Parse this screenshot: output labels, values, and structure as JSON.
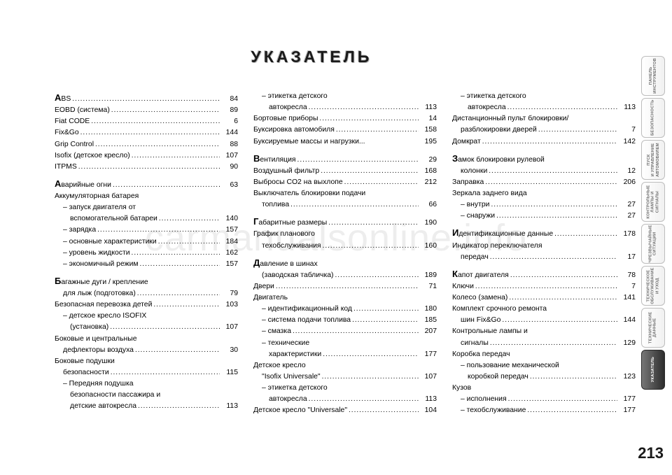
{
  "watermark": "carmanualsonline.info",
  "title": "УКАЗАТЕЛЬ",
  "page_number": "213",
  "tabs": [
    {
      "label": "ПАНЕЛЬ\nИНСТРУМЕНТОВ",
      "active": false
    },
    {
      "label": "БЕЗОПАСНОСТЬ",
      "active": false
    },
    {
      "label": "ПУСК\nИ УПРАВЛЕНИЕ\nАВТОМОБИЛЕМ",
      "active": false
    },
    {
      "label": "КОНТРОЛЬНЫЕ\nЛАМПЫ И\nСИГНАЛЫ",
      "active": false
    },
    {
      "label": "ЧРЕЗВЫЧАЙНЫЕ\nСИТУАЦИИ",
      "active": false
    },
    {
      "label": "ТЕХНИЧЕСКОЕ\nОБСЛУЖИВАНИЕ\nИ УХОД",
      "active": false
    },
    {
      "label": "ТЕХНИЧЕСКИЕ\nДАННЫЕ",
      "active": false
    },
    {
      "label": "УКАЗАТЕЛЬ",
      "active": true
    }
  ],
  "col1": [
    {
      "type": "entry",
      "dropcap": "A",
      "label": "BS",
      "page": "84"
    },
    {
      "type": "entry",
      "label": "EOBD (система)",
      "page": "89"
    },
    {
      "type": "entry",
      "label": "Fiat CODE",
      "page": "6"
    },
    {
      "type": "entry",
      "label": "Fix&Go",
      "page": "144"
    },
    {
      "type": "entry",
      "label": "Grip Control",
      "page": "88"
    },
    {
      "type": "entry",
      "label": "Isofix (детское кресло)",
      "page": "107"
    },
    {
      "type": "entry",
      "label": "ITPMS",
      "page": "90"
    },
    {
      "type": "spacer"
    },
    {
      "type": "entry",
      "dropcap": "А",
      "label": "варийные огни",
      "page": "63"
    },
    {
      "type": "header",
      "label": "Аккумуляторная батарея"
    },
    {
      "type": "subwrap",
      "lines": [
        "– запуск двигателя от",
        "вспомогательной батареи"
      ],
      "page": "140"
    },
    {
      "type": "sub",
      "label": "– зарядка",
      "page": "157"
    },
    {
      "type": "sub",
      "label": "– основные характеристики",
      "page": "184"
    },
    {
      "type": "sub",
      "label": "– уровень жидкости",
      "page": "162"
    },
    {
      "type": "sub",
      "label": "– экономичный режим",
      "page": "157"
    },
    {
      "type": "spacer"
    },
    {
      "type": "wrap",
      "dropcap": "Б",
      "lines": [
        "агажные дуги / крепление",
        "для лыж (подготовка)"
      ],
      "page": "79"
    },
    {
      "type": "entry",
      "label": "Безопасная перевозка детей",
      "page": "103"
    },
    {
      "type": "subwrap",
      "lines": [
        "– детское кресло ISOFIX",
        "(установка)"
      ],
      "page": "107"
    },
    {
      "type": "wrap",
      "lines": [
        "Боковые и центральные",
        "дефлекторы воздуха"
      ],
      "page": "30"
    },
    {
      "type": "wrap",
      "lines": [
        "Боковые подушки",
        "безопасности"
      ],
      "page": "115"
    },
    {
      "type": "subwrap",
      "lines": [
        "– Передняя подушка",
        "безопасности пассажира и",
        "детские автокресла"
      ],
      "page": "113"
    }
  ],
  "col2": [
    {
      "type": "subwrap",
      "lines": [
        "– этикетка детского",
        "автокресла"
      ],
      "page": "113"
    },
    {
      "type": "entry",
      "label": "Бортовые приборы",
      "page": "14"
    },
    {
      "type": "entry",
      "label": "Буксировка автомобиля",
      "page": "158"
    },
    {
      "type": "entry",
      "label": "Буксируемые массы и нагрузки",
      "dots": false,
      "page": "195"
    },
    {
      "type": "spacer"
    },
    {
      "type": "entry",
      "dropcap": "В",
      "label": "ентиляция",
      "page": "29"
    },
    {
      "type": "entry",
      "label": "Воздушный фильтр",
      "page": "168"
    },
    {
      "type": "entry",
      "label": "Выбросы CO2 на выхлопе",
      "page": "212"
    },
    {
      "type": "wrap",
      "lines": [
        "Выключатель блокировки подачи",
        "топлива"
      ],
      "page": "66"
    },
    {
      "type": "spacer"
    },
    {
      "type": "entry",
      "dropcap": "Г",
      "label": "абаритные размеры",
      "page": "190"
    },
    {
      "type": "wrap",
      "lines": [
        "График планового",
        "техобслуживания"
      ],
      "page": "160"
    },
    {
      "type": "spacer"
    },
    {
      "type": "wrap",
      "dropcap": "Д",
      "lines": [
        "авление в шинах",
        "(заводская табличка)"
      ],
      "page": "189"
    },
    {
      "type": "entry",
      "label": "Двери",
      "page": "71"
    },
    {
      "type": "header",
      "label": "Двигатель"
    },
    {
      "type": "sub",
      "label": "– идентификационный код",
      "page": "180"
    },
    {
      "type": "sub",
      "label": "– система подачи топлива",
      "page": "185"
    },
    {
      "type": "sub",
      "label": "– смазка",
      "page": "207"
    },
    {
      "type": "subwrap",
      "lines": [
        "– технические",
        "характеристики"
      ],
      "page": "177"
    },
    {
      "type": "wrap",
      "lines": [
        "Детское кресло",
        "\"Isofix Universale\""
      ],
      "page": "107"
    },
    {
      "type": "subwrap",
      "lines": [
        "– этикетка детского",
        "автокресла"
      ],
      "page": "113"
    },
    {
      "type": "entry",
      "label": "Детское кресло \"Universale\"",
      "page": "104"
    }
  ],
  "col3": [
    {
      "type": "subwrap",
      "lines": [
        "– этикетка детского",
        "автокресла"
      ],
      "page": "113"
    },
    {
      "type": "wrap",
      "lines": [
        "Дистанционный пульт блокировки/",
        "разблокировки дверей"
      ],
      "page": "7"
    },
    {
      "type": "entry",
      "label": "Домкрат",
      "page": "142"
    },
    {
      "type": "spacer"
    },
    {
      "type": "wrap",
      "dropcap": "З",
      "lines": [
        "амок блокировки рулевой",
        "колонки"
      ],
      "page": "12"
    },
    {
      "type": "entry",
      "label": "Заправка",
      "page": "206"
    },
    {
      "type": "header",
      "label": "Зеркала заднего вида"
    },
    {
      "type": "sub",
      "label": "– внутри",
      "page": "27"
    },
    {
      "type": "sub",
      "label": "– снаружи",
      "page": "27"
    },
    {
      "type": "spacer"
    },
    {
      "type": "entry",
      "dropcap": "И",
      "label": "дентификационные данные",
      "page": "178"
    },
    {
      "type": "wrap",
      "lines": [
        "Индикатор переключателя",
        "передач"
      ],
      "page": "17"
    },
    {
      "type": "spacer"
    },
    {
      "type": "entry",
      "dropcap": "К",
      "label": "апот двигателя",
      "page": "78"
    },
    {
      "type": "entry",
      "label": "Ключи",
      "page": "7"
    },
    {
      "type": "entry",
      "label": "Колесо (замена)",
      "page": "141"
    },
    {
      "type": "wrap",
      "lines": [
        "Комплект срочного ремонта",
        "шин Fix&Go"
      ],
      "page": "144"
    },
    {
      "type": "wrap",
      "lines": [
        "Контрольные лампы и",
        "сигналы"
      ],
      "page": "129"
    },
    {
      "type": "header",
      "label": "Коробка передач"
    },
    {
      "type": "subwrap",
      "lines": [
        "– пользование механической",
        "коробкой передач"
      ],
      "page": "123"
    },
    {
      "type": "header",
      "label": "Кузов"
    },
    {
      "type": "sub",
      "label": "– исполнения",
      "page": "177"
    },
    {
      "type": "sub",
      "label": "– техобслуживание",
      "page": "177"
    }
  ]
}
